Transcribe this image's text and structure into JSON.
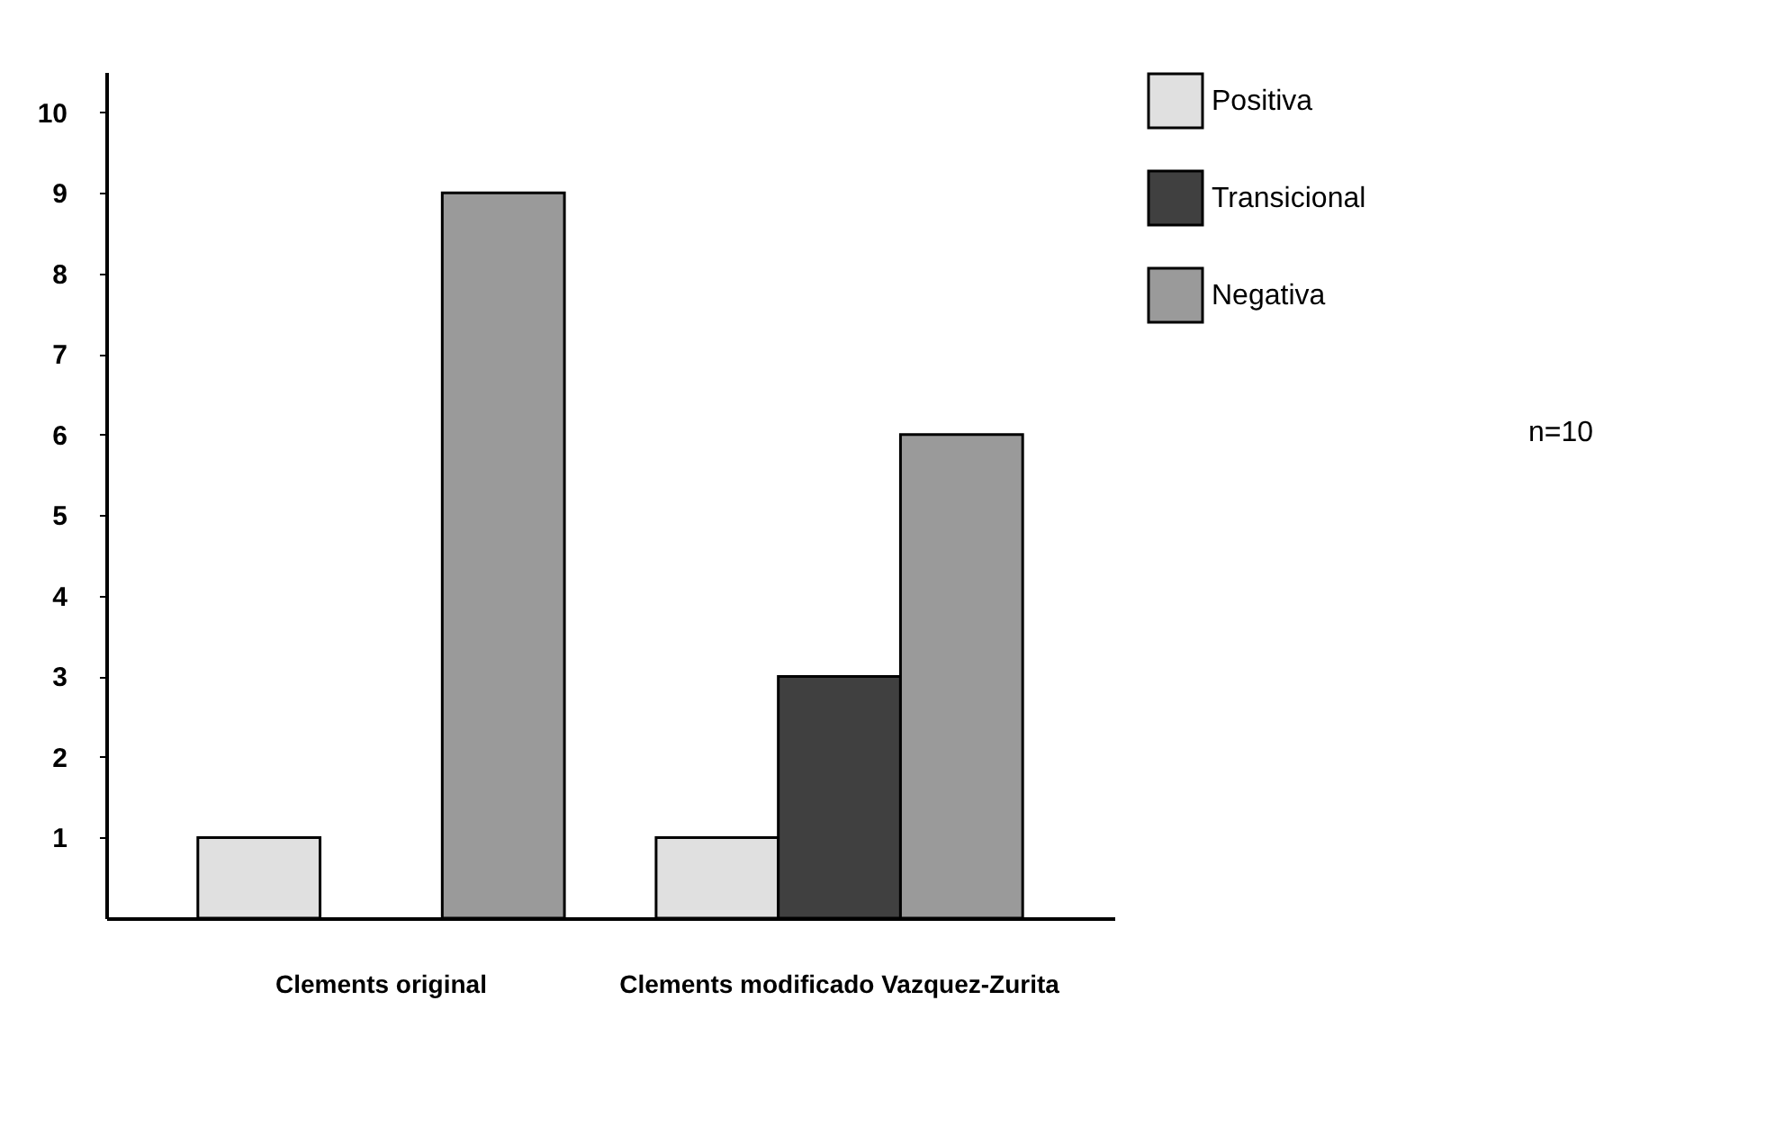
{
  "chart_data": {
    "type": "bar",
    "categories": [
      "Clements original",
      "Clements modificado Vazquez-Zurita"
    ],
    "series": [
      {
        "name": "Positiva",
        "color": "#e0e0e0",
        "values": [
          1,
          1
        ]
      },
      {
        "name": "Transicional",
        "color": "#404040",
        "values": [
          null,
          3
        ]
      },
      {
        "name": "Negativa",
        "color": "#9a9a9a",
        "values": [
          9,
          6
        ]
      }
    ],
    "ylim": [
      0,
      10.5
    ],
    "yticks": [
      1,
      2,
      3,
      4,
      5,
      6,
      7,
      8,
      9,
      10
    ],
    "grid": false,
    "legend": "right",
    "annotations": [
      "n=10"
    ]
  }
}
